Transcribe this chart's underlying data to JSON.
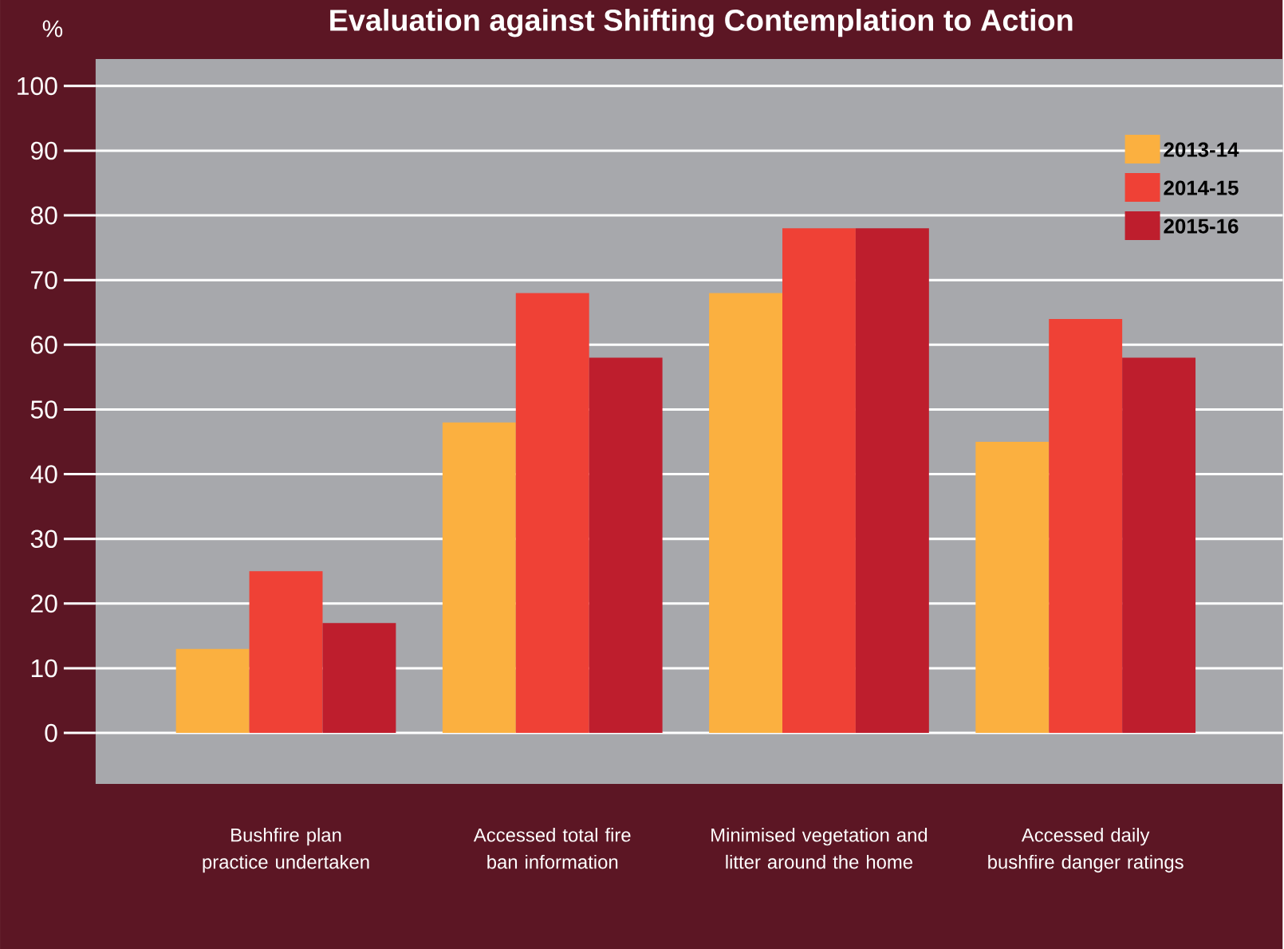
{
  "chart_data": {
    "type": "bar",
    "title": "Evaluation against Shifting Contemplation to Action",
    "ylabel": "%",
    "categories": [
      "Bushfire plan practice undertaken",
      "Accessed total fire ban information",
      "Minimised vegetation and litter around the home",
      "Accessed daily bushfire danger ratings"
    ],
    "series": [
      {
        "name": "2013-14",
        "color": "#fbb040",
        "values": [
          13,
          48,
          68,
          45
        ]
      },
      {
        "name": "2014-15",
        "color": "#ef4136",
        "values": [
          25,
          68,
          78,
          64
        ]
      },
      {
        "name": "2015-16",
        "color": "#be1e2d",
        "values": [
          17,
          58,
          78,
          58
        ]
      }
    ],
    "ylim": [
      0,
      100
    ],
    "yticks": [
      0,
      10,
      20,
      30,
      40,
      50,
      60,
      70,
      80,
      90,
      100
    ],
    "grid": "y",
    "legend": "top right"
  }
}
